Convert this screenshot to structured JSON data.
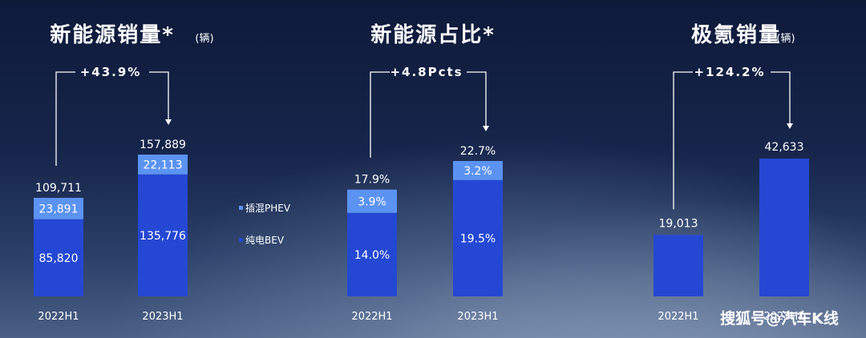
{
  "chart_data": [
    {
      "type": "bar",
      "title": "新能源销量*",
      "unit": "(辆)",
      "growth": "+43.9%",
      "categories": [
        "2022H1",
        "2023H1"
      ],
      "series": [
        {
          "name": "纯电BEV",
          "values": [
            85820,
            135776
          ],
          "labels": [
            "85,820",
            "135,776"
          ]
        },
        {
          "name": "插混PHEV",
          "values": [
            23891,
            22113
          ],
          "labels": [
            "23,891",
            "22,113"
          ]
        }
      ],
      "totals": [
        "109,711",
        "157,889"
      ],
      "total_values": [
        109711,
        157889
      ]
    },
    {
      "type": "bar",
      "title": "新能源占比*",
      "unit": "",
      "growth": "+4.8Pcts",
      "categories": [
        "2022H1",
        "2023H1"
      ],
      "series": [
        {
          "name": "纯电BEV",
          "values": [
            14.0,
            19.5
          ],
          "labels": [
            "14.0%",
            "19.5%"
          ]
        },
        {
          "name": "插混PHEV",
          "values": [
            3.9,
            3.2
          ],
          "labels": [
            "3.9%",
            "3.2%"
          ]
        }
      ],
      "totals": [
        "17.9%",
        "22.7%"
      ],
      "total_values": [
        17.9,
        22.7
      ]
    },
    {
      "type": "bar",
      "title": "极氪销量",
      "unit": "(辆)",
      "growth": "+124.2%",
      "categories": [
        "2022H1",
        "2023H1"
      ],
      "series": [
        {
          "name": "",
          "values": [
            19013,
            42633
          ],
          "labels": [
            "19,013",
            "42,633"
          ]
        }
      ],
      "totals": [],
      "total_values": [
        19013,
        42633
      ]
    }
  ],
  "legend": {
    "items": [
      {
        "label": "插混PHEV",
        "color": "#5b93f2"
      },
      {
        "label": "纯电BEV",
        "color": "#2448d4"
      }
    ]
  },
  "colors": {
    "bev": "#2448d4",
    "phev": "#5b93f2",
    "zeekr": "#2448d4"
  },
  "watermark": "搜狐号@汽车K线"
}
